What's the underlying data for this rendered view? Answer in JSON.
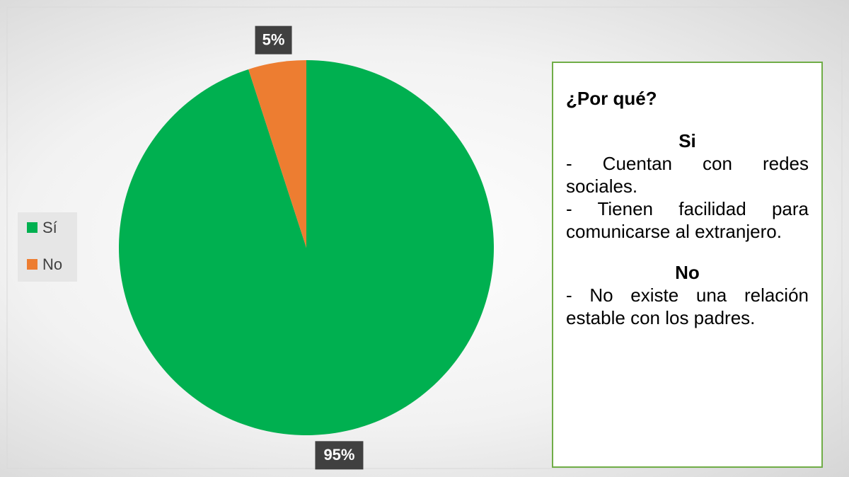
{
  "chart_data": {
    "type": "pie",
    "categories": [
      "Sí",
      "No"
    ],
    "values": [
      95,
      5
    ],
    "value_labels": [
      "95%",
      "5%"
    ],
    "colors": [
      "#00b050",
      "#ed7d31"
    ],
    "legend": "left"
  },
  "text_box": {
    "title": "¿Por qué?",
    "sections": [
      {
        "heading": "Si",
        "items": [
          "- Cuentan con redes sociales.",
          "- Tienen facilidad para comunicarse al extranjero."
        ]
      },
      {
        "heading": "No",
        "items": [
          "- No existe una relación estable con los padres."
        ]
      }
    ]
  }
}
